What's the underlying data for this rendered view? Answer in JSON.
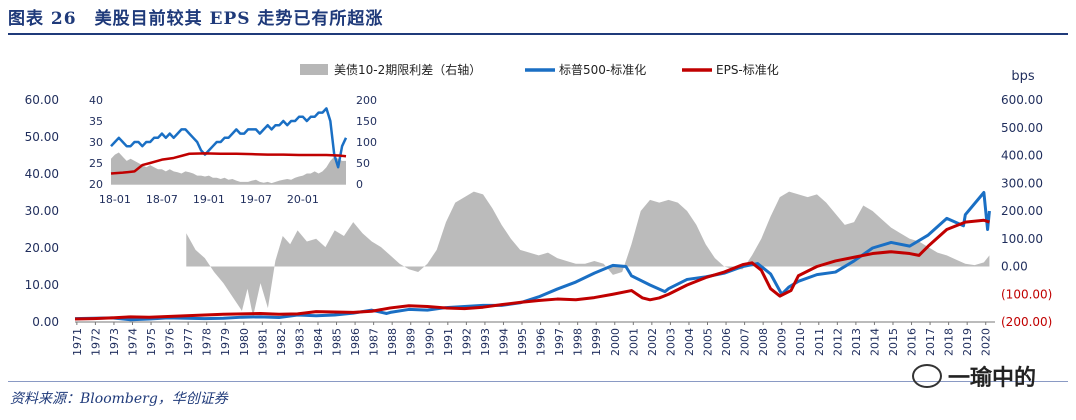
{
  "header": {
    "title": "图表 26　美股目前较其 EPS 走势已有所超涨"
  },
  "footer": {
    "source": "资料来源：Bloomberg，华创证券",
    "watermark": "一瑜中的"
  },
  "colors": {
    "spx": "#1a6fc4",
    "eps": "#c00000",
    "spread": "#b7b7b7",
    "neg_label": "#c00000"
  },
  "chart_data": [
    {
      "type": "line",
      "title": "",
      "legend": [
        "美债10-2期限利差（右轴）",
        "标普500-标准化",
        "EPS-标准化"
      ],
      "left_axis": {
        "ticks": [
          "0.00",
          "10.00",
          "20.00",
          "30.00",
          "40.00",
          "50.00",
          "60.00"
        ],
        "ylim": [
          0,
          60
        ]
      },
      "right_axis": {
        "unit": "bps",
        "ticks": [
          "(200.00)",
          "(100.00)",
          "0.00",
          "100.00",
          "200.00",
          "300.00",
          "400.00",
          "500.00",
          "600.00"
        ],
        "ylim": [
          -200,
          600
        ]
      },
      "x_ticks": [
        "1971",
        "1972",
        "1973",
        "1974",
        "1975",
        "1976",
        "1977",
        "1978",
        "1979",
        "1980",
        "1981",
        "1982",
        "1983",
        "1984",
        "1985",
        "1986",
        "1987",
        "1988",
        "1989",
        "1990",
        "1991",
        "1992",
        "1993",
        "1994",
        "1995",
        "1996",
        "1997",
        "1998",
        "1999",
        "2000",
        "2001",
        "2002",
        "2003",
        "2004",
        "2005",
        "2006",
        "2007",
        "2008",
        "2009",
        "2010",
        "2011",
        "2012",
        "2013",
        "2014",
        "2015",
        "2016",
        "2017",
        "2018",
        "2019",
        "2020"
      ],
      "series": [
        {
          "name": "美债10-2期限利差（右轴）",
          "axis": "right",
          "x": [
            1977.0,
            1977.5,
            1978.0,
            1978.5,
            1979.0,
            1979.5,
            1980.0,
            1980.3,
            1980.6,
            1981.0,
            1981.4,
            1981.8,
            1982.2,
            1982.6,
            1983.0,
            1983.5,
            1984.0,
            1984.5,
            1985.0,
            1985.5,
            1986.0,
            1986.5,
            1987.0,
            1987.5,
            1988.0,
            1988.5,
            1989.0,
            1989.5,
            1990.0,
            1990.5,
            1991.0,
            1991.5,
            1992.0,
            1992.5,
            1993.0,
            1993.5,
            1994.0,
            1994.5,
            1995.0,
            1995.5,
            1996.0,
            1996.5,
            1997.0,
            1997.5,
            1998.0,
            1998.5,
            1999.0,
            1999.5,
            2000.0,
            2000.5,
            2001.0,
            2001.5,
            2002.0,
            2002.5,
            2003.0,
            2003.5,
            2004.0,
            2004.5,
            2005.0,
            2005.5,
            2006.0,
            2006.5,
            2007.0,
            2007.5,
            2008.0,
            2008.5,
            2009.0,
            2009.5,
            2010.0,
            2010.5,
            2011.0,
            2011.5,
            2012.0,
            2012.5,
            2013.0,
            2013.5,
            2014.0,
            2014.5,
            2015.0,
            2015.5,
            2016.0,
            2016.5,
            2017.0,
            2017.5,
            2018.0,
            2018.5,
            2019.0,
            2019.5,
            2020.0,
            2020.3
          ],
          "values": [
            120,
            60,
            30,
            -20,
            -60,
            -110,
            -160,
            -80,
            -180,
            -60,
            -150,
            20,
            110,
            80,
            130,
            90,
            100,
            70,
            130,
            110,
            160,
            120,
            90,
            70,
            40,
            10,
            -10,
            -20,
            10,
            60,
            160,
            230,
            250,
            270,
            260,
            210,
            150,
            100,
            60,
            50,
            40,
            50,
            30,
            20,
            10,
            10,
            20,
            10,
            -30,
            -20,
            80,
            200,
            240,
            230,
            240,
            230,
            200,
            150,
            80,
            30,
            0,
            -10,
            -10,
            40,
            100,
            180,
            250,
            270,
            260,
            250,
            260,
            230,
            190,
            150,
            160,
            220,
            200,
            170,
            140,
            120,
            100,
            90,
            70,
            50,
            40,
            25,
            10,
            5,
            15,
            40
          ]
        },
        {
          "name": "标普500-标准化",
          "axis": "left",
          "x": [
            1971,
            1972,
            1973,
            1974,
            1975,
            1976,
            1977,
            1978,
            1979,
            1980,
            1981,
            1982,
            1983,
            1984,
            1985,
            1986,
            1987,
            1987.8,
            1988,
            1989,
            1990,
            1991,
            1992,
            1993,
            1994,
            1995,
            1996,
            1997,
            1998,
            1999,
            2000,
            2000.7,
            2001,
            2002,
            2002.8,
            2003,
            2004,
            2005,
            2006,
            2007,
            2007.8,
            2008.5,
            2009.1,
            2009.5,
            2010,
            2011,
            2012,
            2013,
            2014,
            2015,
            2016,
            2017,
            2018,
            2018.9,
            2019,
            2020.0,
            2020.2,
            2020.3
          ],
          "values": [
            0.9,
            1.0,
            1.1,
            0.6,
            0.8,
            1.1,
            1.0,
            0.9,
            1.0,
            1.3,
            1.4,
            1.2,
            1.9,
            1.7,
            1.9,
            2.4,
            3.2,
            2.3,
            2.6,
            3.4,
            3.2,
            3.9,
            4.2,
            4.5,
            4.5,
            5.2,
            6.8,
            8.9,
            10.8,
            13.2,
            15.3,
            15.0,
            12.5,
            10.0,
            8.2,
            9.0,
            11.5,
            12.2,
            13.2,
            15.0,
            15.8,
            13.0,
            7.5,
            9.5,
            11.0,
            12.8,
            13.5,
            16.5,
            20.0,
            21.5,
            20.5,
            23.5,
            28.0,
            26.0,
            29.0,
            35.0,
            25.0,
            30.0
          ]
        },
        {
          "name": "EPS-标准化",
          "axis": "left",
          "x": [
            1971,
            1972,
            1973,
            1974,
            1975,
            1976,
            1977,
            1978,
            1979,
            1980,
            1981,
            1982,
            1983,
            1984,
            1985,
            1986,
            1987,
            1988,
            1989,
            1990,
            1991,
            1992,
            1993,
            1994,
            1995,
            1996,
            1997,
            1998,
            1999,
            2000,
            2001,
            2001.6,
            2002,
            2002.5,
            2003,
            2004,
            2005,
            2006,
            2007,
            2007.5,
            2008,
            2008.5,
            2009,
            2009.6,
            2010,
            2011,
            2012,
            2013,
            2014,
            2015,
            2016,
            2016.5,
            2017,
            2018,
            2019,
            2020.0,
            2020.3
          ],
          "values": [
            0.8,
            0.9,
            1.1,
            1.4,
            1.3,
            1.5,
            1.7,
            1.9,
            2.1,
            2.2,
            2.3,
            2.1,
            2.2,
            2.8,
            2.7,
            2.6,
            2.9,
            3.8,
            4.4,
            4.2,
            3.8,
            3.6,
            4.0,
            4.7,
            5.3,
            5.8,
            6.2,
            6.0,
            6.6,
            7.5,
            8.5,
            6.5,
            6.0,
            6.5,
            7.5,
            10.0,
            12.0,
            13.5,
            15.5,
            16.0,
            14.0,
            9.0,
            7.0,
            8.5,
            12.5,
            15.0,
            16.5,
            17.5,
            18.5,
            19.0,
            18.5,
            18.0,
            20.5,
            25.0,
            27.0,
            27.5,
            27.0
          ]
        }
      ]
    },
    {
      "type": "line",
      "title": "inset",
      "left_axis": {
        "ticks": [
          "20",
          "25",
          "30",
          "35",
          "40"
        ],
        "ylim": [
          20,
          40
        ]
      },
      "right_axis": {
        "ticks": [
          "0",
          "50",
          "100",
          "150",
          "200"
        ],
        "ylim": [
          0,
          200
        ]
      },
      "x_ticks": [
        "18-01",
        "18-07",
        "19-01",
        "19-07",
        "20-01"
      ],
      "series": [
        {
          "name": "spread",
          "axis": "right",
          "x": [
            0,
            1,
            2,
            3,
            4,
            5,
            6,
            7,
            8,
            9,
            10,
            11,
            12,
            13,
            14,
            15,
            16,
            17,
            18,
            19,
            20,
            21,
            22,
            23,
            24,
            25,
            26,
            27,
            28,
            29,
            30,
            31,
            32,
            33,
            34,
            35,
            36,
            37,
            38,
            39,
            40,
            41,
            42,
            43,
            44,
            45,
            46,
            47,
            48,
            49,
            50,
            51,
            52,
            53,
            54,
            55,
            56,
            57,
            58,
            59,
            60
          ],
          "values": [
            60,
            70,
            75,
            65,
            55,
            60,
            55,
            50,
            45,
            40,
            45,
            40,
            35,
            35,
            30,
            35,
            30,
            28,
            25,
            30,
            28,
            25,
            20,
            20,
            18,
            20,
            15,
            15,
            12,
            15,
            10,
            12,
            8,
            5,
            5,
            5,
            8,
            10,
            5,
            3,
            5,
            2,
            5,
            8,
            10,
            12,
            10,
            15,
            18,
            20,
            25,
            25,
            30,
            25,
            30,
            40,
            55,
            65,
            60,
            55,
            55
          ]
        },
        {
          "name": "spx",
          "axis": "left",
          "x": [
            0,
            1,
            2,
            3,
            4,
            5,
            6,
            7,
            8,
            9,
            10,
            11,
            12,
            13,
            14,
            15,
            16,
            17,
            18,
            19,
            20,
            21,
            22,
            23,
            24,
            25,
            26,
            27,
            28,
            29,
            30,
            31,
            32,
            33,
            34,
            35,
            36,
            37,
            38,
            39,
            40,
            41,
            42,
            43,
            44,
            45,
            46,
            47,
            48,
            49,
            50,
            51,
            52,
            53,
            54,
            55,
            56,
            57,
            58,
            59,
            60
          ],
          "values": [
            29,
            30,
            31,
            30,
            29,
            29,
            30,
            30,
            29,
            30,
            30,
            31,
            31,
            32,
            31,
            32,
            31,
            32,
            33,
            33,
            32,
            31,
            30,
            28,
            27,
            28,
            29,
            30,
            30,
            31,
            31,
            32,
            33,
            32,
            32,
            33,
            33,
            33,
            32,
            33,
            34,
            33,
            34,
            34,
            35,
            34,
            35,
            35,
            36,
            36,
            35,
            36,
            36,
            37,
            37,
            38,
            35,
            27,
            24,
            29,
            31
          ]
        },
        {
          "name": "eps",
          "axis": "left",
          "x": [
            0,
            3,
            6,
            8,
            10,
            13,
            16,
            18,
            20,
            24,
            28,
            32,
            36,
            40,
            44,
            48,
            52,
            55,
            58,
            60
          ],
          "values": [
            22.5,
            22.7,
            23.0,
            24.5,
            25.0,
            25.8,
            26.2,
            26.7,
            27.2,
            27.3,
            27.2,
            27.2,
            27.1,
            27.0,
            27.0,
            26.9,
            26.9,
            26.9,
            26.8,
            26.6
          ]
        }
      ]
    }
  ]
}
